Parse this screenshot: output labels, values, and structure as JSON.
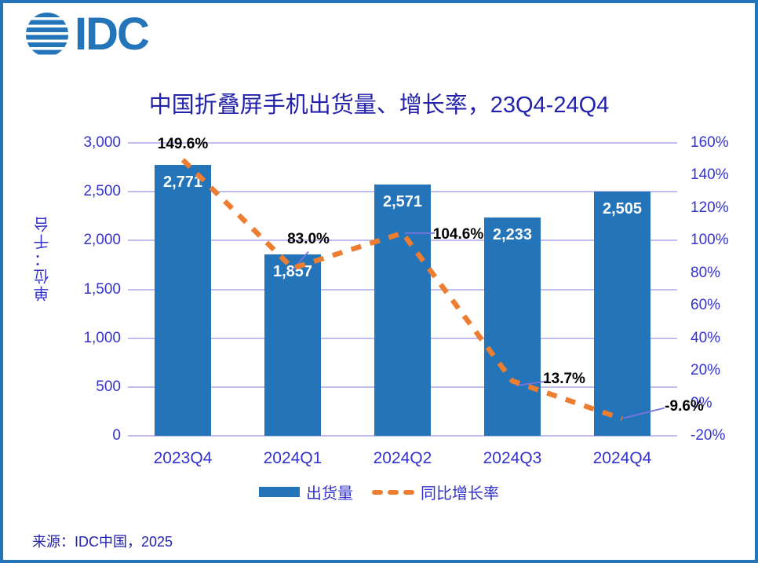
{
  "brand": {
    "logo_text": "IDC"
  },
  "title": "中国折叠屏手机出货量、增长率，23Q4-24Q4",
  "y_axis": {
    "title": "单位：千台",
    "ticks": [
      "3,000",
      "2,500",
      "2,000",
      "1,500",
      "1,000",
      "500",
      "0"
    ],
    "min": 0,
    "max": 3000
  },
  "y2_axis": {
    "ticks": [
      "160%",
      "140%",
      "120%",
      "100%",
      "80%",
      "60%",
      "40%",
      "20%",
      "0%",
      "-20%"
    ],
    "min": -20,
    "max": 160
  },
  "chart_data": {
    "type": "bar+line combo",
    "title": "中国折叠屏手机出货量、增长率，23Q4-24Q4",
    "categories": [
      "2023Q4",
      "2024Q1",
      "2024Q2",
      "2024Q3",
      "2024Q4"
    ],
    "series": [
      {
        "name": "出货量",
        "type": "bar",
        "axis": "left",
        "values": [
          2771,
          1857,
          2571,
          2233,
          2505
        ],
        "labels": [
          "2,771",
          "1,857",
          "2,571",
          "2,233",
          "2,505"
        ]
      },
      {
        "name": "同比增长率",
        "type": "line",
        "style": "dashed",
        "axis": "right",
        "values": [
          149.6,
          83.0,
          104.6,
          13.7,
          -9.6
        ],
        "labels": [
          "149.6%",
          "83.0%",
          "104.6%",
          "13.7%",
          "-9.6%"
        ]
      }
    ],
    "ylabel_left": "单位：千台",
    "ylim_left": [
      0,
      3000
    ],
    "ylim_right": [
      -20,
      160
    ],
    "grid": true,
    "legend_position": "bottom"
  },
  "legend": {
    "items": [
      {
        "label": "出货量",
        "swatch": "bar"
      },
      {
        "label": "同比增长率",
        "swatch": "dashed-line"
      }
    ]
  },
  "source": "来源：IDC中国，2025",
  "colors": {
    "bar": "#2374B8",
    "line": "#ED7D31",
    "grid": "#C1BDEE",
    "axis_text": "#3333CC",
    "title_text": "#2222AA",
    "bar_label": "#FFFFFF",
    "line_label": "#000000",
    "leader_line": "#7B74E0",
    "frame_border": "#2374B8",
    "logo": "#2374B8"
  }
}
